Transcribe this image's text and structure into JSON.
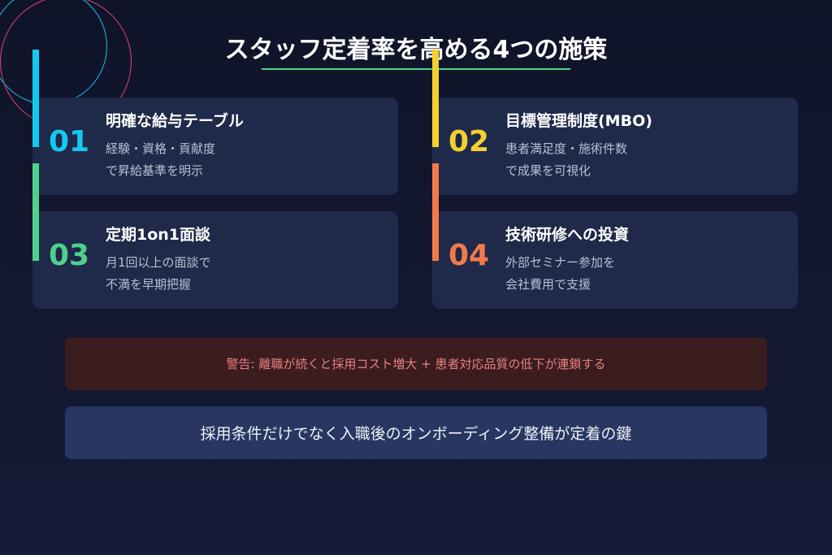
{
  "title": "スタッフ定着率を高める4つの施策",
  "colors": {
    "cyan": "#14c8f0",
    "green": "#4fd18b",
    "yellow": "#f5d02e",
    "orange": "#f27a4a",
    "pink": "#e0407a"
  },
  "cards": [
    {
      "number": "01",
      "title": "明確な給与テーブル",
      "lines": [
        "経験・資格・貢献度",
        "で昇給基準を明示"
      ],
      "color": "#14c8f0"
    },
    {
      "number": "02",
      "title": "目標管理制度(MBO)",
      "lines": [
        "患者満足度・施術件数",
        "で成果を可視化"
      ],
      "color": "#f5d02e"
    },
    {
      "number": "03",
      "title": "定期1on1面談",
      "lines": [
        "月1回以上の面談で",
        "不満を早期把握"
      ],
      "color": "#4fd18b"
    },
    {
      "number": "04",
      "title": "技術研修への投資",
      "lines": [
        "外部セミナー参加を",
        "会社費用で支援"
      ],
      "color": "#f27a4a"
    }
  ],
  "warning": "警告: 離職が続くと採用コスト増大 + 患者対応品質の低下が連鎖する",
  "key_message": "採用条件だけでなく入職後のオンボーディング整備が定着の鍵"
}
